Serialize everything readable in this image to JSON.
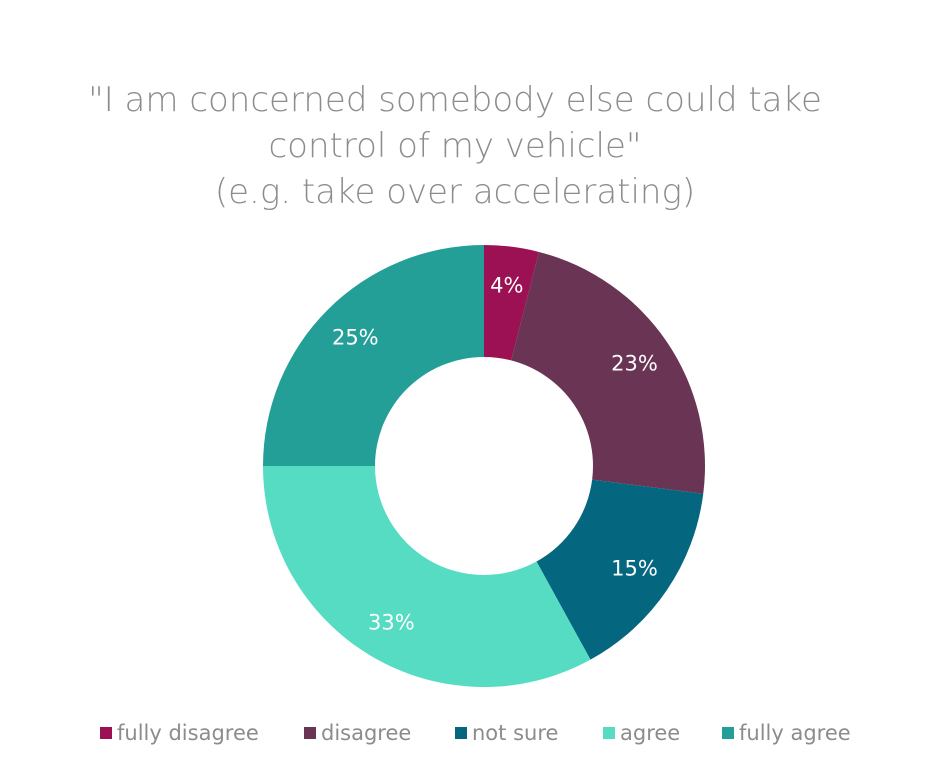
{
  "chart_data": {
    "type": "pie",
    "donut": true,
    "title": [
      "\"I am concerned somebody else could take",
      "control of my vehicle\"",
      "(e.g. take over accelerating)"
    ],
    "categories": [
      "fully disagree",
      "disagree",
      "not sure",
      "agree",
      "fully agree"
    ],
    "values": [
      4,
      23,
      15,
      33,
      25
    ],
    "data_labels": [
      "4%",
      "23%",
      "15%",
      "33%",
      "25%"
    ],
    "colors": [
      "#9b1153",
      "#6a3454",
      "#05677f",
      "#55dcc2",
      "#239f98"
    ],
    "legend_position": "bottom",
    "label_color": "#ffffff",
    "text_color": "#8c8c8c"
  }
}
